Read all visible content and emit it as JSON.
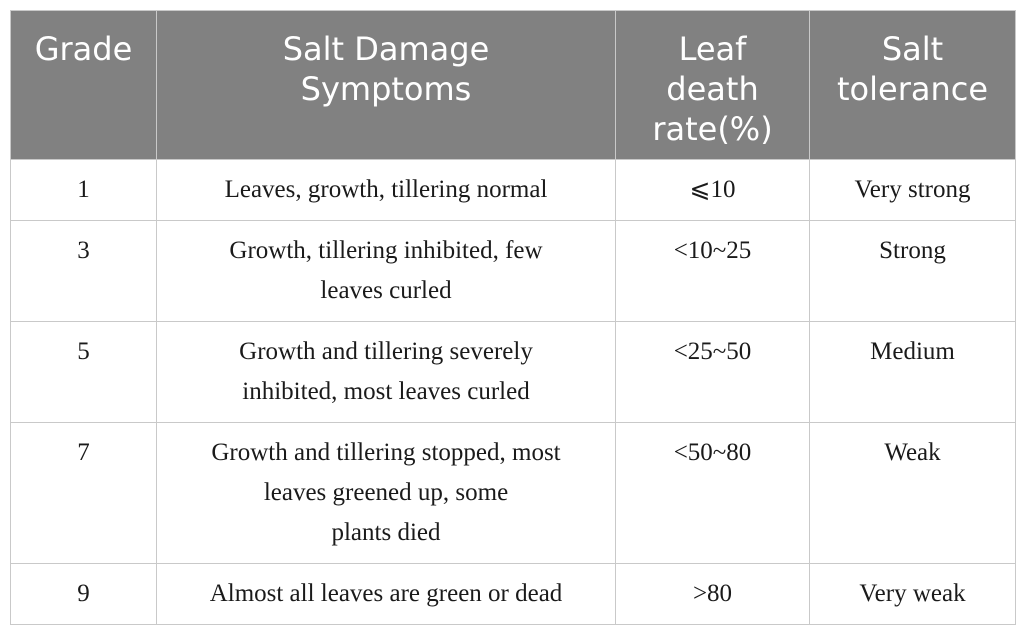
{
  "table": {
    "headers": {
      "grade": [
        "Grade"
      ],
      "symptoms": [
        "Salt Damage",
        "Symptoms"
      ],
      "death_rate": [
        "Leaf",
        "death",
        "rate(%)"
      ],
      "tolerance": [
        "Salt",
        "tolerance"
      ]
    },
    "rows": [
      {
        "grade": "1",
        "symptoms": [
          "Leaves, growth, tillering normal"
        ],
        "death_rate": "⩽10",
        "tolerance": "Very strong"
      },
      {
        "grade": "3",
        "symptoms": [
          "Growth, tillering inhibited, few",
          "leaves curled"
        ],
        "death_rate": "<10~25",
        "tolerance": "Strong"
      },
      {
        "grade": "5",
        "symptoms": [
          "Growth and tillering severely",
          "inhibited, most leaves curled"
        ],
        "death_rate": "<25~50",
        "tolerance": "Medium"
      },
      {
        "grade": "7",
        "symptoms": [
          "Growth and tillering stopped, most",
          "leaves greened up, some",
          "plants died"
        ],
        "death_rate": "<50~80",
        "tolerance": "Weak"
      },
      {
        "grade": "9",
        "symptoms": [
          "Almost all leaves are green or dead"
        ],
        "death_rate": ">80",
        "tolerance": "Very weak"
      }
    ]
  },
  "colors": {
    "header_background": "#818181",
    "header_text": "#ffffff",
    "border": "#c9c9c9",
    "body_text": "#1a1a1a"
  }
}
